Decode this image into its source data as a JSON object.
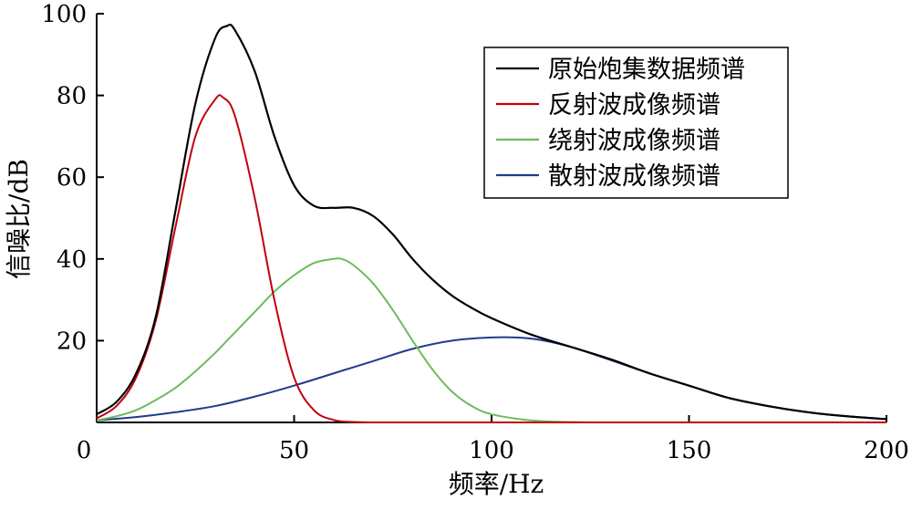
{
  "chart_data": {
    "type": "line",
    "title": "",
    "xlabel": "频率/Hz",
    "ylabel": "信噪比/dB",
    "xlim": [
      0,
      200
    ],
    "ylim": [
      0,
      100
    ],
    "x_ticks": [
      0,
      50,
      100,
      150,
      200
    ],
    "y_ticks": [
      20,
      40,
      60,
      80,
      100
    ],
    "grid": false,
    "legend_position": "top-right",
    "series": [
      {
        "name": "原始炮集数据频谱",
        "color": "#000000",
        "x": [
          0,
          5,
          10,
          15,
          20,
          25,
          30,
          33,
          35,
          40,
          45,
          50,
          55,
          60,
          65,
          70,
          75,
          80,
          85,
          90,
          95,
          100,
          110,
          120,
          130,
          140,
          150,
          160,
          170,
          180,
          190,
          200
        ],
        "y": [
          2,
          5,
          12,
          26,
          52,
          78,
          94,
          97,
          96,
          86,
          70,
          58,
          53,
          52.5,
          52.5,
          50.5,
          46,
          40,
          35,
          31,
          28,
          25.5,
          21.5,
          18.5,
          15.5,
          12,
          9,
          6,
          4,
          2.5,
          1.5,
          0.8
        ]
      },
      {
        "name": "反射波成像频谱",
        "color": "#c0000f",
        "x": [
          0,
          5,
          10,
          15,
          20,
          25,
          30,
          32,
          35,
          40,
          45,
          50,
          55,
          60,
          65,
          70,
          80,
          100,
          150,
          200
        ],
        "y": [
          1,
          4,
          11,
          25,
          48,
          70,
          79,
          79.5,
          75,
          55,
          30,
          11,
          3,
          0.6,
          0.1,
          0,
          0,
          0,
          0,
          0
        ]
      },
      {
        "name": "绕射波成像频谱",
        "color": "#6bbd5b",
        "x": [
          0,
          5,
          10,
          15,
          20,
          25,
          30,
          35,
          40,
          45,
          50,
          55,
          60,
          62,
          65,
          70,
          75,
          80,
          85,
          90,
          95,
          100,
          110,
          120,
          130,
          150,
          200
        ],
        "y": [
          0.5,
          1.5,
          3,
          5.5,
          8.5,
          12.5,
          17,
          22,
          27,
          32,
          36,
          39,
          40,
          40,
          38.5,
          34,
          27.5,
          20,
          13,
          7.5,
          4,
          2,
          0.5,
          0.1,
          0,
          0,
          0
        ]
      },
      {
        "name": "散射波成像频谱",
        "color": "#1f3c8c",
        "x": [
          0,
          10,
          20,
          30,
          40,
          50,
          60,
          70,
          80,
          90,
          100,
          110,
          120,
          130,
          140,
          150,
          160,
          170,
          180,
          190,
          200
        ],
        "y": [
          0.5,
          1.3,
          2.5,
          4,
          6.3,
          9,
          12,
          15,
          18,
          20,
          20.8,
          20.5,
          18.5,
          15.3,
          12,
          9,
          6,
          4,
          2.5,
          1.5,
          0.8
        ]
      }
    ]
  }
}
